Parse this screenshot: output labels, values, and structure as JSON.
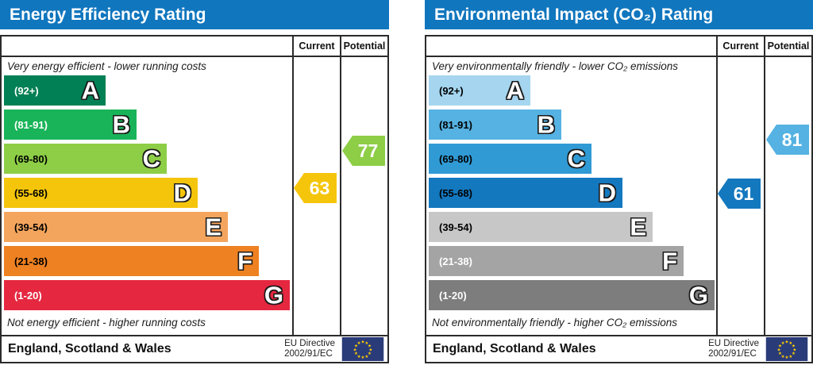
{
  "charts": [
    {
      "id": "energy-efficiency",
      "title": "Energy Efficiency Rating",
      "columns": {
        "current": "Current",
        "potential": "Potential"
      },
      "caption_top": "Very energy efficient - lower running costs",
      "caption_bottom": "Not energy efficient - higher running costs",
      "bands": [
        {
          "letter": "A",
          "range": "(92+)",
          "min": 92,
          "max": 100,
          "color": "#008054",
          "label_color": "#ffffff"
        },
        {
          "letter": "B",
          "range": "(81-91)",
          "min": 81,
          "max": 91,
          "color": "#19b459",
          "label_color": "#ffffff"
        },
        {
          "letter": "C",
          "range": "(69-80)",
          "min": 69,
          "max": 80,
          "color": "#8dce46",
          "label_color": "#000000"
        },
        {
          "letter": "D",
          "range": "(55-68)",
          "min": 55,
          "max": 68,
          "color": "#f5c50c",
          "label_color": "#000000"
        },
        {
          "letter": "E",
          "range": "(39-54)",
          "min": 39,
          "max": 54,
          "color": "#f4a55d",
          "label_color": "#000000"
        },
        {
          "letter": "F",
          "range": "(21-38)",
          "min": 21,
          "max": 38,
          "color": "#ee8122",
          "label_color": "#000000"
        },
        {
          "letter": "G",
          "range": "(1-20)",
          "min": 1,
          "max": 20,
          "color": "#e52740",
          "label_color": "#ffffff"
        }
      ],
      "arrows": [
        {
          "type": "current",
          "value": 63,
          "color": "#f5c50c"
        },
        {
          "type": "potential",
          "value": 77,
          "color": "#8dce46"
        }
      ],
      "footer": {
        "region": "England, Scotland & Wales",
        "directive_line1": "EU Directive",
        "directive_line2": "2002/91/EC"
      }
    },
    {
      "id": "environmental-impact-co2",
      "title": "Environmental Impact (CO₂) Rating",
      "columns": {
        "current": "Current",
        "potential": "Potential"
      },
      "caption_top": "Very environmentally friendly - lower CO₂ emissions",
      "caption_bottom": "Not environmentally friendly - higher CO₂ emissions",
      "bands": [
        {
          "letter": "A",
          "range": "(92+)",
          "min": 92,
          "max": 100,
          "color": "#a5d5ef",
          "label_color": "#000000"
        },
        {
          "letter": "B",
          "range": "(81-91)",
          "min": 81,
          "max": 91,
          "color": "#55b2e2",
          "label_color": "#000000"
        },
        {
          "letter": "C",
          "range": "(69-80)",
          "min": 69,
          "max": 80,
          "color": "#309ad5",
          "label_color": "#000000"
        },
        {
          "letter": "D",
          "range": "(55-68)",
          "min": 55,
          "max": 68,
          "color": "#1478bf",
          "label_color": "#000000"
        },
        {
          "letter": "E",
          "range": "(39-54)",
          "min": 39,
          "max": 54,
          "color": "#c6c7c6",
          "label_color": "#000000"
        },
        {
          "letter": "F",
          "range": "(21-38)",
          "min": 21,
          "max": 38,
          "color": "#a3a4a3",
          "label_color": "#ffffff"
        },
        {
          "letter": "G",
          "range": "(1-20)",
          "min": 1,
          "max": 20,
          "color": "#7c7d7c",
          "label_color": "#ffffff"
        }
      ],
      "arrows": [
        {
          "type": "current",
          "value": 61,
          "color": "#1478bf"
        },
        {
          "type": "potential",
          "value": 81,
          "color": "#55b2e2"
        }
      ],
      "footer": {
        "region": "England, Scotland & Wales",
        "directive_line1": "EU Directive",
        "directive_line2": "2002/91/EC"
      }
    }
  ],
  "chart_data": [
    {
      "type": "bar",
      "title": "Energy Efficiency Rating",
      "subtitle_top": "Very energy efficient - lower running costs",
      "subtitle_bottom": "Not energy efficient - higher running costs",
      "categories": [
        "A (92+)",
        "B (81-91)",
        "C (69-80)",
        "D (55-68)",
        "E (39-54)",
        "F (21-38)",
        "G (1-20)"
      ],
      "band_colors": [
        "#008054",
        "#19b459",
        "#8dce46",
        "#f5c50c",
        "#f4a55d",
        "#ee8122",
        "#e52740"
      ],
      "bar_lengths_relative": [
        1,
        2,
        3,
        4,
        5,
        6,
        7
      ],
      "series": [
        {
          "name": "Current",
          "values": [
            63
          ],
          "band": "D"
        },
        {
          "name": "Potential",
          "values": [
            77
          ],
          "band": "C"
        }
      ],
      "legend_position": "top-right columns",
      "footer": "England, Scotland & Wales — EU Directive 2002/91/EC"
    },
    {
      "type": "bar",
      "title": "Environmental Impact (CO₂) Rating",
      "subtitle_top": "Very environmentally friendly - lower CO₂ emissions",
      "subtitle_bottom": "Not environmentally friendly - higher CO₂ emissions",
      "categories": [
        "A (92+)",
        "B (81-91)",
        "C (69-80)",
        "D (55-68)",
        "E (39-54)",
        "F (21-38)",
        "G (1-20)"
      ],
      "band_colors": [
        "#a5d5ef",
        "#55b2e2",
        "#309ad5",
        "#1478bf",
        "#c6c7c6",
        "#a3a4a3",
        "#7c7d7c"
      ],
      "bar_lengths_relative": [
        1,
        2,
        3,
        4,
        5,
        6,
        7
      ],
      "series": [
        {
          "name": "Current",
          "values": [
            61
          ],
          "band": "D"
        },
        {
          "name": "Potential",
          "values": [
            81
          ],
          "band": "B"
        }
      ],
      "legend_position": "top-right columns",
      "footer": "England, Scotland & Wales — EU Directive 2002/91/EC"
    }
  ]
}
